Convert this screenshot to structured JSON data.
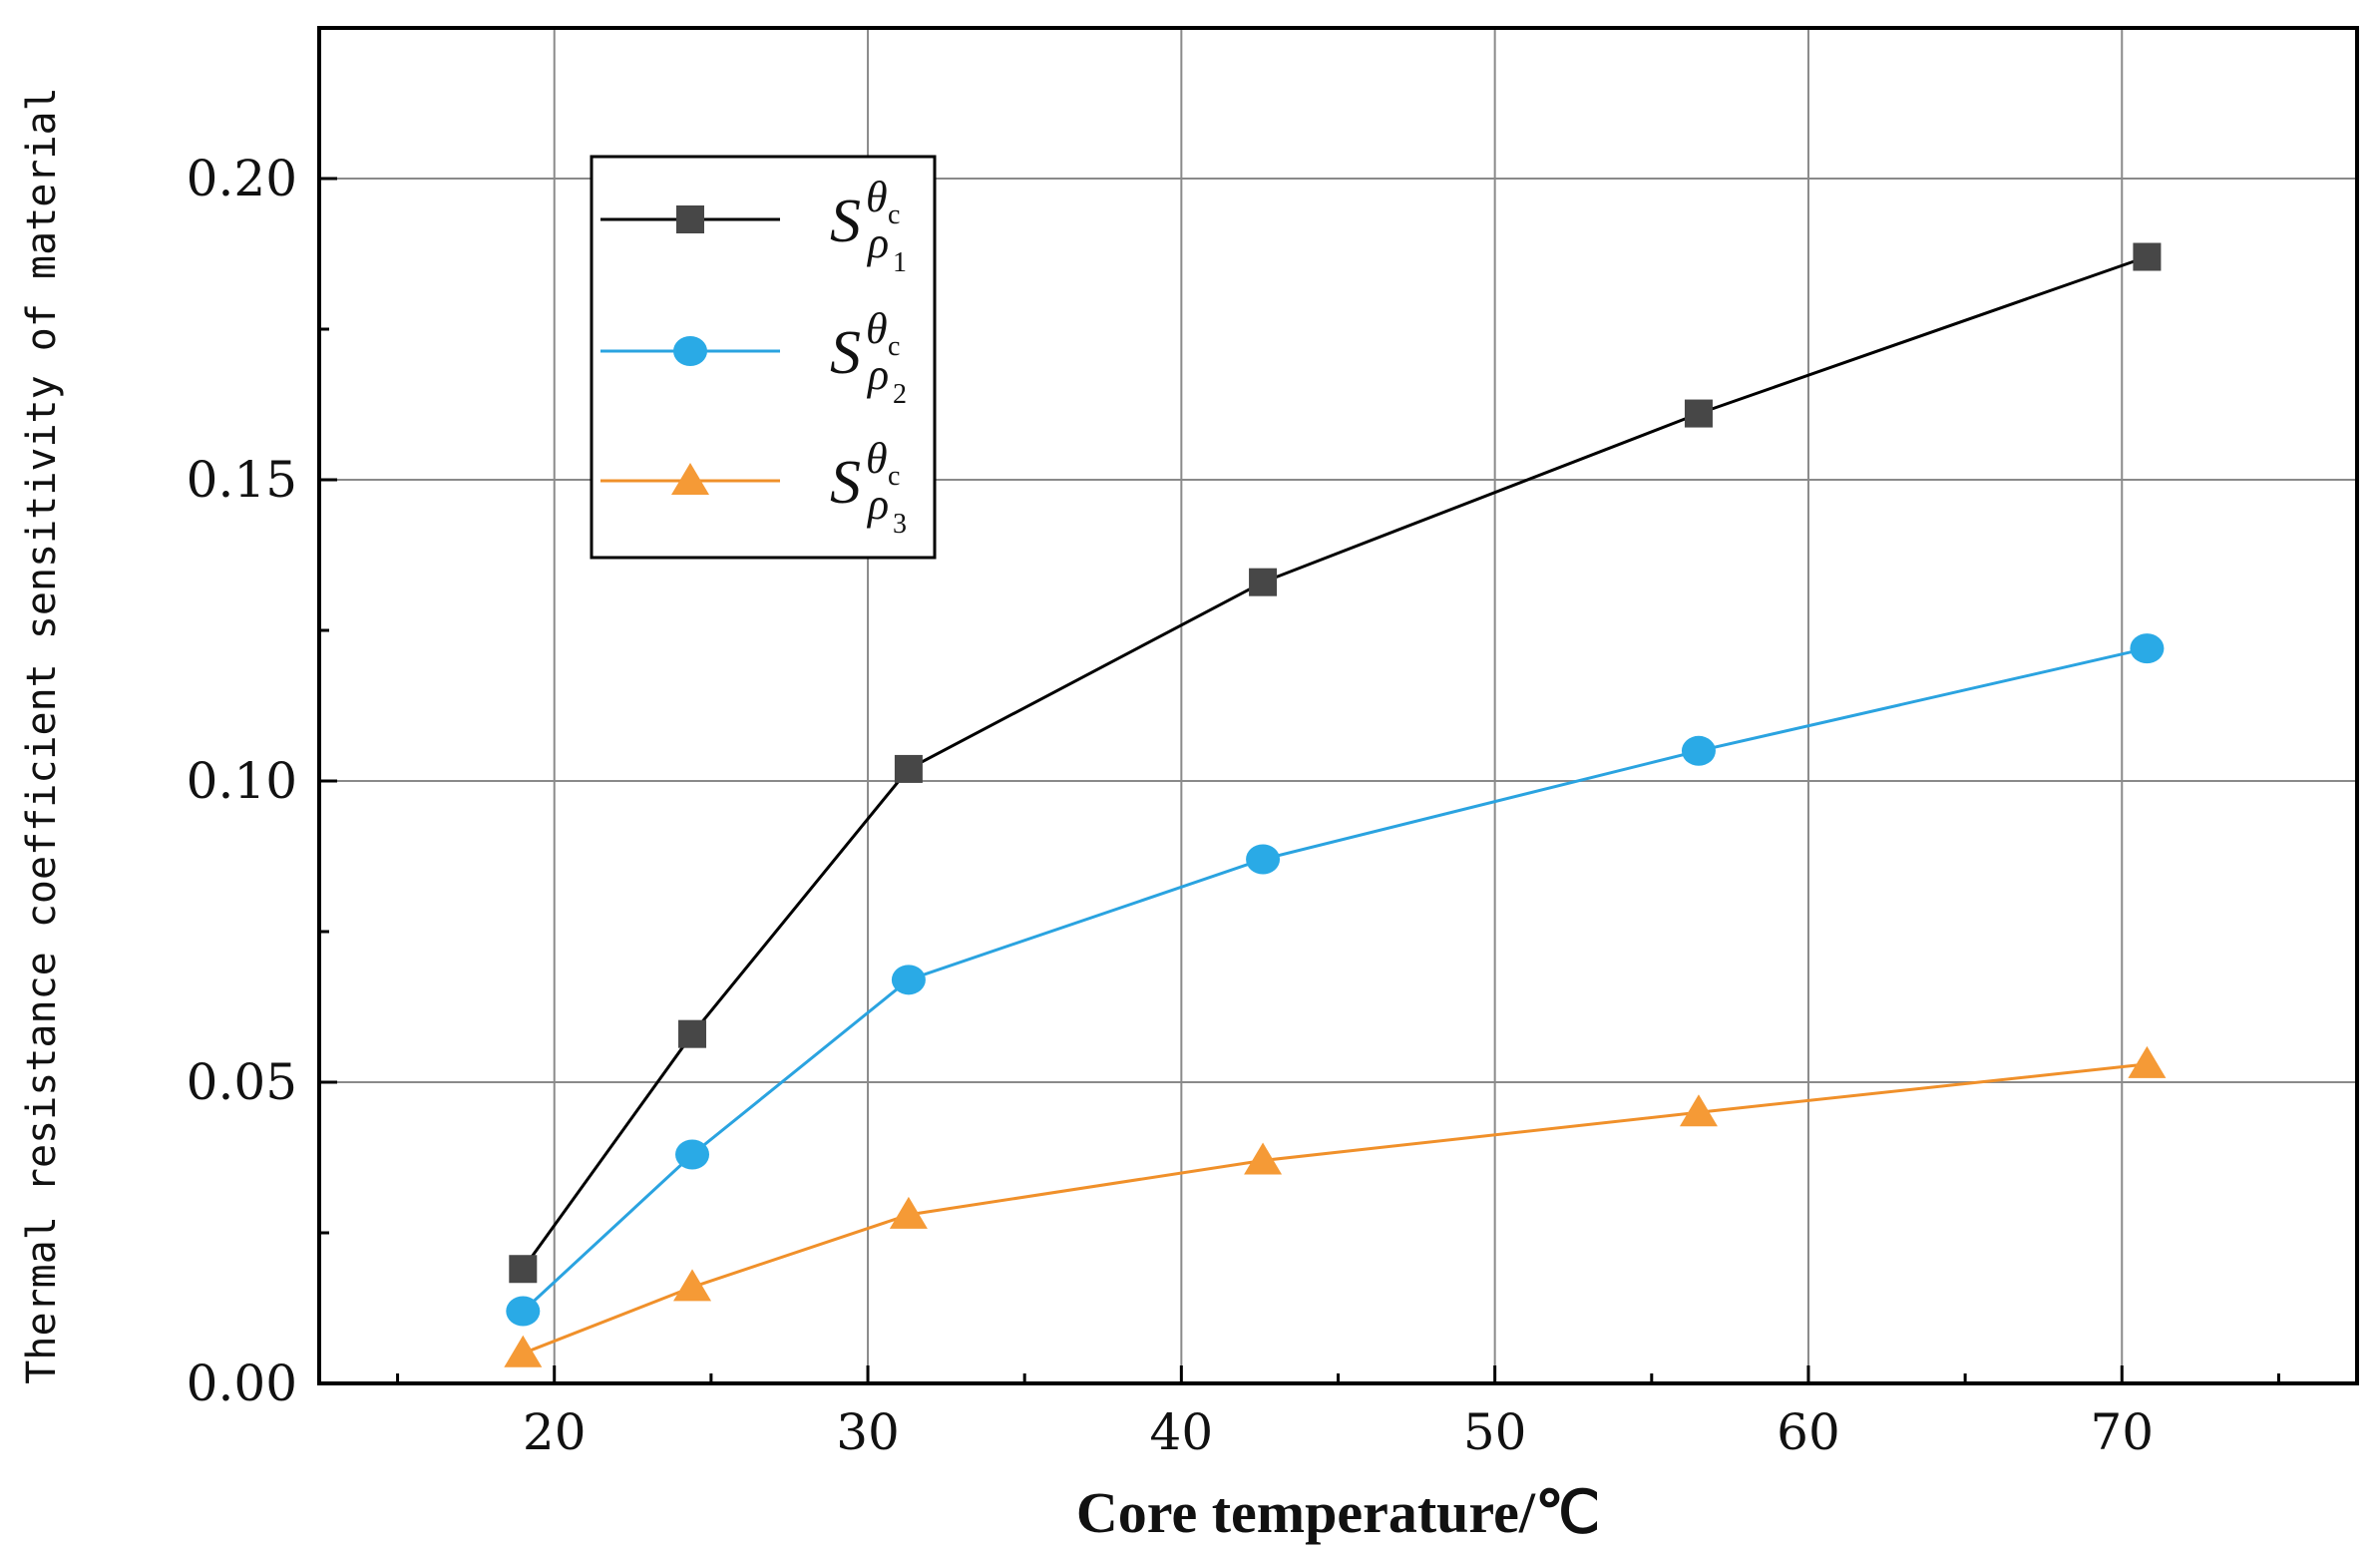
{
  "chart_data": {
    "type": "line",
    "title": "",
    "xlabel": "Core temperature/℃",
    "ylabel": "Thermal resistance coefficient sensitivity of material",
    "xlim": [
      12.5,
      77.5
    ],
    "ylim": [
      0.0,
      0.225
    ],
    "xticks": [
      20,
      30,
      40,
      50,
      60,
      70
    ],
    "yticks": [
      0.0,
      0.05,
      0.1,
      0.15,
      0.2
    ],
    "xtick_labels": [
      "20",
      "30",
      "40",
      "50",
      "60",
      "70"
    ],
    "ytick_labels": [
      "0.00",
      "0.05",
      "0.10",
      "0.15",
      "0.20"
    ],
    "grid": true,
    "legend_position": "top-left",
    "series": [
      {
        "name": "S_ρ1^θc",
        "label_base": "S",
        "label_sup": "θ",
        "label_supsub": "c",
        "label_sub": "ρ",
        "label_subsub": "1",
        "color": "#000000",
        "marker_color": "#474747",
        "marker": "square",
        "x": [
          19.0,
          24.4,
          31.3,
          42.6,
          56.5,
          70.8
        ],
        "y": [
          0.019,
          0.058,
          0.102,
          0.133,
          0.161,
          0.187
        ]
      },
      {
        "name": "S_ρ2^θc",
        "label_base": "S",
        "label_sup": "θ",
        "label_supsub": "c",
        "label_sub": "ρ",
        "label_subsub": "2",
        "color": "#2aa3e0",
        "marker_color": "#2aaae6",
        "marker": "circle",
        "x": [
          19.0,
          24.4,
          31.3,
          42.6,
          56.5,
          70.8
        ],
        "y": [
          0.012,
          0.038,
          0.067,
          0.087,
          0.105,
          0.122
        ]
      },
      {
        "name": "S_ρ3^θc",
        "label_base": "S",
        "label_sup": "θ",
        "label_supsub": "c",
        "label_sub": "ρ",
        "label_subsub": "3",
        "color": "#f0902a",
        "marker_color": "#f59a36",
        "marker": "triangle",
        "x": [
          19.0,
          24.4,
          31.3,
          42.6,
          56.5,
          70.8
        ],
        "y": [
          0.005,
          0.016,
          0.028,
          0.037,
          0.045,
          0.053
        ]
      }
    ]
  }
}
